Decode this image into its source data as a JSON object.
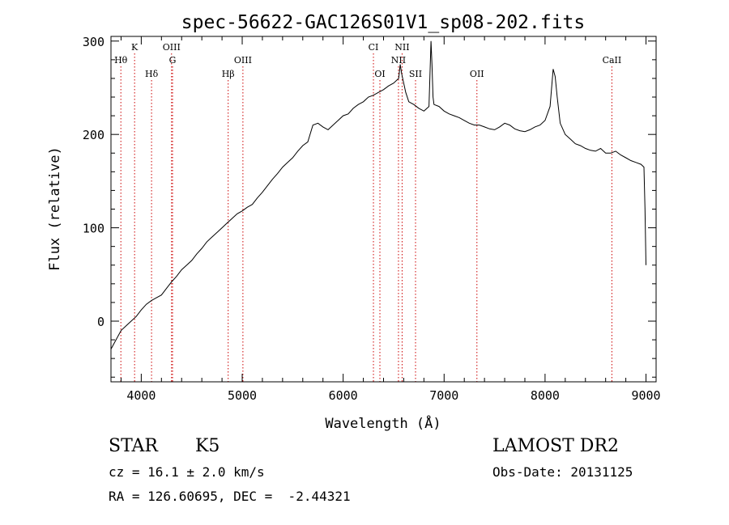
{
  "chart_data": {
    "type": "line",
    "title": "spec-56622-GAC126S01V1_sp08-202.fits",
    "xlabel": "Wavelength (Å)",
    "ylabel": "Flux (relative)",
    "xlim": [
      3700,
      9100
    ],
    "ylim": [
      -65,
      305
    ],
    "xticks": [
      4000,
      5000,
      6000,
      7000,
      8000,
      9000
    ],
    "yticks": [
      0,
      100,
      200,
      300
    ],
    "grid": false,
    "line_color": "#000000",
    "marker_color": "#cc0000",
    "series": [
      {
        "x": [
          3700,
          3750,
          3800,
          3850,
          3900,
          3950,
          4000,
          4050,
          4100,
          4150,
          4200,
          4250,
          4300,
          4350,
          4400,
          4450,
          4500,
          4550,
          4600,
          4650,
          4700,
          4750,
          4800,
          4850,
          4900,
          4950,
          5000,
          5050,
          5100,
          5150,
          5200,
          5250,
          5300,
          5350,
          5400,
          5450,
          5500,
          5550,
          5600,
          5650,
          5700,
          5750,
          5800,
          5850,
          5900,
          5950,
          6000,
          6050,
          6100,
          6150,
          6200,
          6250,
          6300,
          6350,
          6400,
          6450,
          6500,
          6550,
          6565,
          6580,
          6620,
          6650,
          6700,
          6750,
          6800,
          6850,
          6870,
          6880,
          6890,
          6900,
          6950,
          7000,
          7050,
          7100,
          7150,
          7200,
          7250,
          7300,
          7350,
          7400,
          7450,
          7500,
          7550,
          7600,
          7650,
          7700,
          7750,
          7800,
          7850,
          7900,
          7950,
          8000,
          8050,
          8080,
          8100,
          8120,
          8150,
          8200,
          8250,
          8300,
          8350,
          8400,
          8450,
          8500,
          8550,
          8600,
          8650,
          8700,
          8750,
          8800,
          8850,
          8900,
          8950,
          8980,
          8990,
          9000
        ],
        "y": [
          -30,
          -20,
          -10,
          -5,
          0,
          5,
          12,
          18,
          22,
          25,
          28,
          35,
          42,
          48,
          55,
          60,
          65,
          72,
          78,
          85,
          90,
          95,
          100,
          105,
          110,
          115,
          118,
          122,
          125,
          132,
          138,
          145,
          152,
          158,
          165,
          170,
          175,
          182,
          188,
          192,
          210,
          212,
          208,
          205,
          210,
          215,
          220,
          222,
          228,
          232,
          235,
          240,
          242,
          245,
          248,
          252,
          255,
          260,
          275,
          265,
          245,
          235,
          232,
          228,
          225,
          230,
          300,
          275,
          240,
          232,
          230,
          225,
          222,
          220,
          218,
          215,
          212,
          210,
          210,
          208,
          206,
          205,
          208,
          212,
          210,
          206,
          204,
          203,
          205,
          208,
          210,
          215,
          230,
          270,
          262,
          240,
          212,
          200,
          195,
          190,
          188,
          185,
          183,
          182,
          185,
          180,
          180,
          182,
          178,
          175,
          172,
          170,
          168,
          165,
          120,
          60
        ]
      }
    ],
    "lines": [
      {
        "label": "Hθ",
        "x": 3798,
        "row": 2
      },
      {
        "label": "K",
        "x": 3934,
        "row": 1
      },
      {
        "label": "Hδ",
        "x": 4102,
        "row": 3
      },
      {
        "label": "OIII",
        "x": 4300,
        "row": 1
      },
      {
        "label": "G",
        "x": 4310,
        "row": 2
      },
      {
        "label": "Hβ",
        "x": 4861,
        "row": 3
      },
      {
        "label": "OIII",
        "x": 5007,
        "row": 2
      },
      {
        "label": "CI",
        "x": 6300,
        "row": 1
      },
      {
        "label": "OI",
        "x": 6364,
        "row": 3
      },
      {
        "label": "NII",
        "x": 6548,
        "row": 2
      },
      {
        "label": "NII",
        "x": 6584,
        "row": 1
      },
      {
        "label": "SII",
        "x": 6717,
        "row": 3
      },
      {
        "label": "OII",
        "x": 7325,
        "row": 3
      },
      {
        "label": "CaII",
        "x": 8662,
        "row": 2
      }
    ]
  },
  "info": {
    "object_class": "STAR",
    "subclass": "K5",
    "survey": "LAMOST DR2",
    "redshift": "cz = 16.1 ± 2.0 km/s",
    "obs_date": "Obs-Date: 20131125",
    "coords": "RA = 126.60695, DEC =  -2.44321"
  }
}
